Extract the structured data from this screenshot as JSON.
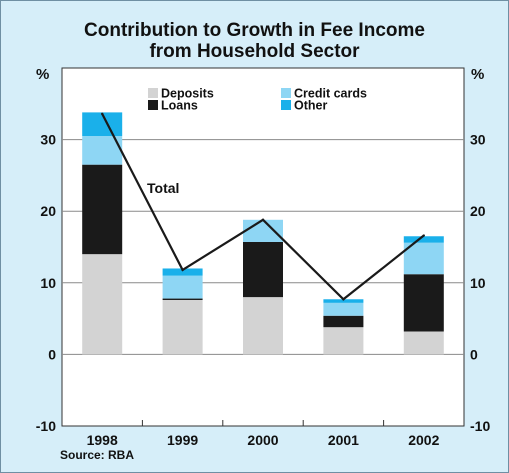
{
  "chart_data": {
    "type": "bar",
    "title_line1": "Contribution to Growth in Fee Income",
    "title_line2": "from Household Sector",
    "unit_left": "%",
    "unit_right": "%",
    "categories": [
      "1998",
      "1999",
      "2000",
      "2001",
      "2002"
    ],
    "ylim": [
      -10,
      40
    ],
    "yticks": [
      "-10",
      "0",
      "10",
      "20",
      "30"
    ],
    "series": [
      {
        "name": "Deposits",
        "color": "#d3d3d3",
        "values": [
          14.0,
          7.6,
          8.0,
          3.8,
          3.2
        ]
      },
      {
        "name": "Loans",
        "color": "#1a1a1a",
        "values": [
          12.5,
          0.2,
          7.7,
          1.6,
          8.0
        ]
      },
      {
        "name": "Credit cards",
        "color": "#8ed6f4",
        "values": [
          4.0,
          3.2,
          3.1,
          1.8,
          4.4
        ]
      },
      {
        "name": "Other",
        "color": "#1ab0ea",
        "values": [
          3.3,
          1.0,
          0.0,
          0.5,
          0.9
        ]
      }
    ],
    "line": {
      "name": "Total",
      "values": [
        33.6,
        11.8,
        18.8,
        7.7,
        16.6
      ],
      "color": "#1a1a1a"
    },
    "grid": true,
    "legend_position": "top-left",
    "source": "Source: RBA"
  }
}
